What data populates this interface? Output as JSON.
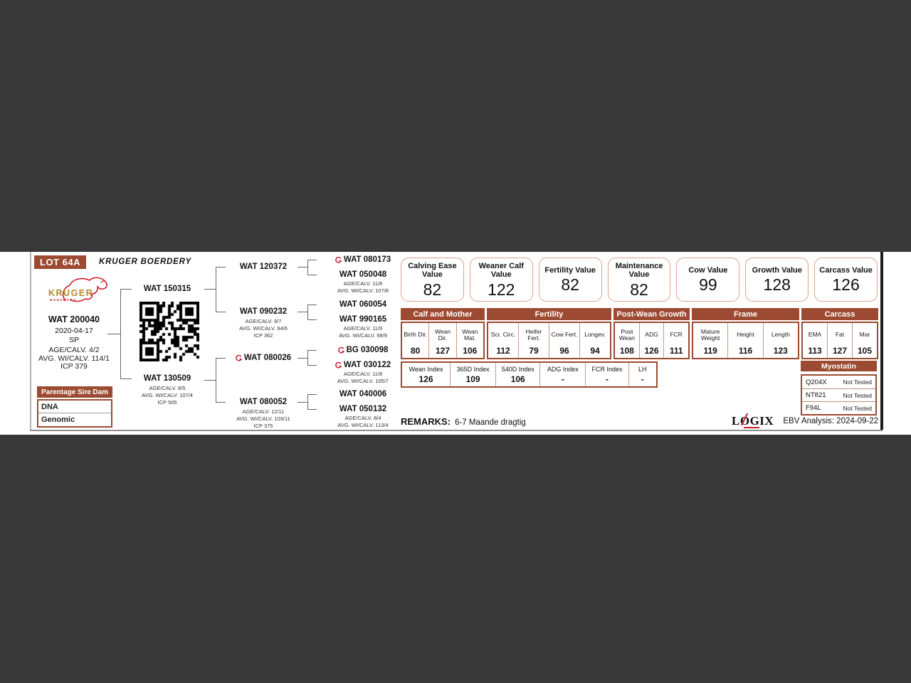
{
  "colors": {
    "brown": "#9c4a31",
    "band": "#383838",
    "box_border": "#d9a491",
    "red": "#cf2030",
    "gold": "#b5892c"
  },
  "header": {
    "lot": "LOT 64A",
    "farm": "KRUGER BOERDERY"
  },
  "logo": {
    "name": "KRUGER",
    "sub": "BONSMARA"
  },
  "animal": {
    "id": "WAT 200040",
    "birth_date": "2020-04-17",
    "code": "SP",
    "stats": [
      "AGE/CALV. 4/2",
      "AVG. WI/CALV. 114/1",
      "ICP 379"
    ]
  },
  "parentage": {
    "columns": [
      "Parentage",
      "Sire",
      "Dam"
    ],
    "rows": [
      "DNA",
      "Genomic"
    ]
  },
  "pedigree": {
    "sire": {
      "id": "WAT 150315"
    },
    "dam": {
      "id": "WAT 130509",
      "stats": [
        "AGE/CALV. 8/5",
        "AVG. WI/CALV. 107/4",
        "ICP 505"
      ]
    },
    "gen2": [
      {
        "id": "WAT 120372"
      },
      {
        "id": "WAT 090232",
        "stats": [
          "AGE/CALV. 9/7",
          "AVG. WI/CALV. 94/6",
          "ICP 362"
        ]
      },
      {
        "id": "WAT 080026"
      },
      {
        "id": "WAT 080052",
        "stats": [
          "AGE/CALV. 12/11",
          "AVG. WI/CALV. 103/11",
          "ICP 375"
        ]
      }
    ],
    "gen3": [
      {
        "id": "WAT 080173"
      },
      {
        "id": "WAT 050048",
        "stats": [
          "AGE/CALV. 11/8",
          "AVG. WI/CALV. 107/8"
        ]
      },
      {
        "id": "WAT 060054"
      },
      {
        "id": "WAT 990165",
        "stats": [
          "AGE/CALV. 11/9",
          "AVG. WI/CALV. 98/9"
        ]
      },
      {
        "id": "BG 030098"
      },
      {
        "id": "WAT 030122",
        "stats": [
          "AGE/CALV. 11/8",
          "AVG. WI/CALV. 105/7"
        ]
      },
      {
        "id": "WAT 040006"
      },
      {
        "id": "WAT 050132",
        "stats": [
          "AGE/CALV. 8/4",
          "AVG. WI/CALV. 113/4"
        ]
      }
    ]
  },
  "value_boxes": [
    {
      "label": "Calving Ease Value",
      "value": "82"
    },
    {
      "label": "Weaner Calf Value",
      "value": "122"
    },
    {
      "label": "Fertility Value",
      "value": "82"
    },
    {
      "label": "Maintenance Value",
      "value": "82"
    },
    {
      "label": "Cow Value",
      "value": "99"
    },
    {
      "label": "Growth Value",
      "value": "128"
    },
    {
      "label": "Carcass Value",
      "value": "126"
    }
  ],
  "ebv": {
    "groups": [
      {
        "name": "Calf and Mother",
        "cols": [
          {
            "label": "Birth Dir.",
            "value": "80"
          },
          {
            "label": "Wean Dir.",
            "value": "127"
          },
          {
            "label": "Wean Mat.",
            "value": "106"
          }
        ]
      },
      {
        "name": "Fertility",
        "cols": [
          {
            "label": "Scr. Circ.",
            "value": "112"
          },
          {
            "label": "Heifer Fert.",
            "value": "79"
          },
          {
            "label": "Cow Fert.",
            "value": "96"
          },
          {
            "label": "Longev.",
            "value": "94"
          }
        ]
      },
      {
        "name": "Post-Wean Growth",
        "cols": [
          {
            "label": "Post Wean",
            "value": "108"
          },
          {
            "label": "ADG",
            "value": "126"
          },
          {
            "label": "FCR",
            "value": "111"
          }
        ]
      },
      {
        "name": "Frame",
        "cols": [
          {
            "label": "Mature Weight",
            "value": "119"
          },
          {
            "label": "Height",
            "value": "116"
          },
          {
            "label": "Length",
            "value": "123"
          }
        ]
      },
      {
        "name": "Carcass",
        "cols": [
          {
            "label": "EMA",
            "value": "113"
          },
          {
            "label": "Fat",
            "value": "127"
          },
          {
            "label": "Mar",
            "value": "105"
          }
        ]
      }
    ]
  },
  "index_table": {
    "cells": [
      {
        "label": "Wean Index",
        "value": "126"
      },
      {
        "label": "365D Index",
        "value": "109"
      },
      {
        "label": "540D Index",
        "value": "106"
      },
      {
        "label": "ADG Index",
        "value": "-"
      },
      {
        "label": "FCR Index",
        "value": "-"
      },
      {
        "label": "LH",
        "value": "-"
      }
    ]
  },
  "myostatin": {
    "title": "Myostatin",
    "rows": [
      {
        "gene": "Q204X",
        "result": "Not Tested"
      },
      {
        "gene": "NT821",
        "result": "Not Tested"
      },
      {
        "gene": "F94L",
        "result": "Not Tested"
      }
    ]
  },
  "remarks": {
    "label": "REMARKS:",
    "text": "6-7 Maande dragtig"
  },
  "footer": {
    "logo": "LOGIX",
    "analysis": "EBV Analysis: 2024-09-22"
  }
}
